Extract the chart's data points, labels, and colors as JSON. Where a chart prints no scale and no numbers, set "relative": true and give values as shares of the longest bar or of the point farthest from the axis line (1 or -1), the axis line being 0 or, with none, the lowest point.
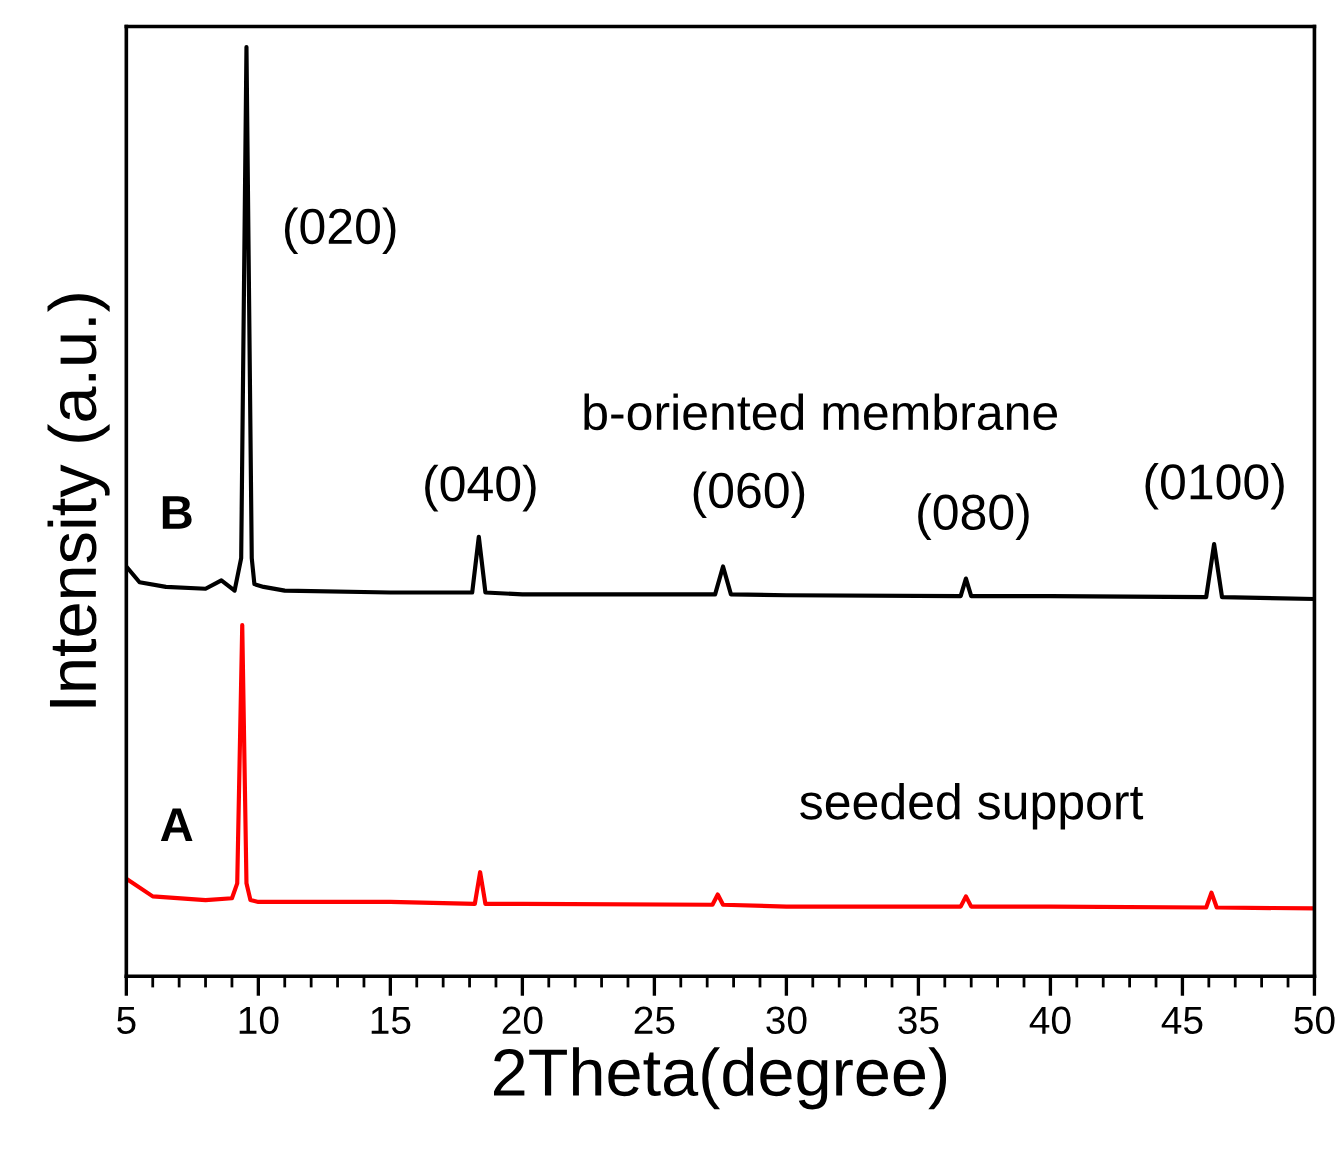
{
  "chart_data": {
    "type": "line",
    "relative": true,
    "xlabel": "2Theta(degree)",
    "ylabel": "Intensity (a.u.)",
    "xlim": [
      5,
      50
    ],
    "xticks": [
      5,
      10,
      15,
      20,
      25,
      30,
      35,
      40,
      45,
      50
    ],
    "tick_labels": "x",
    "grid": false,
    "legend": false,
    "series": [
      {
        "name": "B",
        "color": "#000000",
        "x": [
          5,
          5.5,
          6.5,
          8,
          8.6,
          9.1,
          9.35,
          9.55,
          9.75,
          9.85,
          10.2,
          11,
          15,
          18.1,
          18.35,
          18.6,
          20,
          27.3,
          27.6,
          27.9,
          30,
          36.6,
          36.8,
          37.0,
          40,
          45.9,
          46.2,
          46.5,
          50
        ],
        "values": [
          0.441,
          0.424,
          0.419,
          0.417,
          0.426,
          0.415,
          0.45,
          1.0,
          0.45,
          0.422,
          0.419,
          0.415,
          0.413,
          0.413,
          0.473,
          0.413,
          0.411,
          0.411,
          0.441,
          0.411,
          0.41,
          0.409,
          0.428,
          0.409,
          0.409,
          0.408,
          0.465,
          0.408,
          0.406
        ]
      },
      {
        "name": "A",
        "color": "#ff0000",
        "x": [
          5,
          6,
          8,
          9.0,
          9.2,
          9.39,
          9.55,
          9.7,
          10,
          15,
          18.2,
          18.4,
          18.6,
          20,
          27.2,
          27.4,
          27.6,
          30,
          36.6,
          36.8,
          37.0,
          40,
          45.9,
          46.1,
          46.3,
          50
        ],
        "values": [
          0.105,
          0.086,
          0.082,
          0.084,
          0.1,
          0.378,
          0.1,
          0.082,
          0.08,
          0.08,
          0.078,
          0.112,
          0.078,
          0.078,
          0.077,
          0.088,
          0.077,
          0.075,
          0.075,
          0.086,
          0.075,
          0.075,
          0.074,
          0.09,
          0.074,
          0.073
        ]
      }
    ],
    "annotations": [
      "(020)",
      "b-oriented membrane",
      "(040)",
      "(060)",
      "(080)",
      "(0100)",
      "seeded support"
    ]
  }
}
